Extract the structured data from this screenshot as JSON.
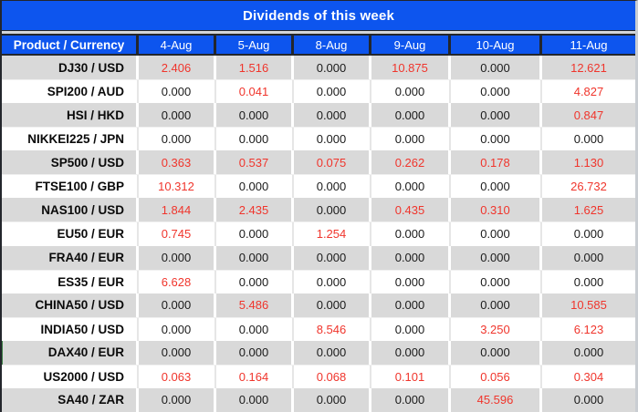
{
  "title": "Dividends of this week",
  "zero_value": "0.000",
  "colors": {
    "header_blue": "#0d55ee",
    "row_gray": "#d9d9d9",
    "value_red": "#f0352c",
    "value_black": "#1a1a1a",
    "border_dark": "#23262c",
    "divider_gray": "#d2d5d9",
    "green_marker": "#3a7d44"
  },
  "table": {
    "corner_header": "Product / Currency",
    "date_headers": [
      "4-Aug",
      "5-Aug",
      "8-Aug",
      "9-Aug",
      "10-Aug",
      "11-Aug"
    ],
    "rows": [
      {
        "product": "DJ30 / USD",
        "values": [
          "2.406",
          "1.516",
          "0.000",
          "10.875",
          "0.000",
          "12.621"
        ]
      },
      {
        "product": "SPI200 / AUD",
        "values": [
          "0.000",
          "0.041",
          "0.000",
          "0.000",
          "0.000",
          "4.827"
        ]
      },
      {
        "product": "HSI / HKD",
        "values": [
          "0.000",
          "0.000",
          "0.000",
          "0.000",
          "0.000",
          "0.847"
        ]
      },
      {
        "product": "NIKKEI225 / JPN",
        "values": [
          "0.000",
          "0.000",
          "0.000",
          "0.000",
          "0.000",
          "0.000"
        ]
      },
      {
        "product": "SP500 / USD",
        "values": [
          "0.363",
          "0.537",
          "0.075",
          "0.262",
          "0.178",
          "1.130"
        ]
      },
      {
        "product": "FTSE100 / GBP",
        "values": [
          "10.312",
          "0.000",
          "0.000",
          "0.000",
          "0.000",
          "26.732"
        ]
      },
      {
        "product": "NAS100 / USD",
        "values": [
          "1.844",
          "2.435",
          "0.000",
          "0.435",
          "0.310",
          "1.625"
        ]
      },
      {
        "product": "EU50 / EUR",
        "values": [
          "0.745",
          "0.000",
          "1.254",
          "0.000",
          "0.000",
          "0.000"
        ]
      },
      {
        "product": "FRA40 / EUR",
        "values": [
          "0.000",
          "0.000",
          "0.000",
          "0.000",
          "0.000",
          "0.000"
        ]
      },
      {
        "product": "ES35 / EUR",
        "values": [
          "6.628",
          "0.000",
          "0.000",
          "0.000",
          "0.000",
          "0.000"
        ]
      },
      {
        "product": "CHINA50 / USD",
        "values": [
          "0.000",
          "5.486",
          "0.000",
          "0.000",
          "0.000",
          "10.585"
        ]
      },
      {
        "product": "INDIA50 / USD",
        "values": [
          "0.000",
          "0.000",
          "8.546",
          "0.000",
          "3.250",
          "6.123"
        ]
      },
      {
        "product": "DAX40 / EUR",
        "values": [
          "0.000",
          "0.000",
          "0.000",
          "0.000",
          "0.000",
          "0.000"
        ]
      },
      {
        "product": "US2000 / USD",
        "values": [
          "0.063",
          "0.164",
          "0.068",
          "0.101",
          "0.056",
          "0.304"
        ]
      },
      {
        "product": "SA40 / ZAR",
        "values": [
          "0.000",
          "0.000",
          "0.000",
          "0.000",
          "45.596",
          "0.000"
        ]
      }
    ]
  }
}
